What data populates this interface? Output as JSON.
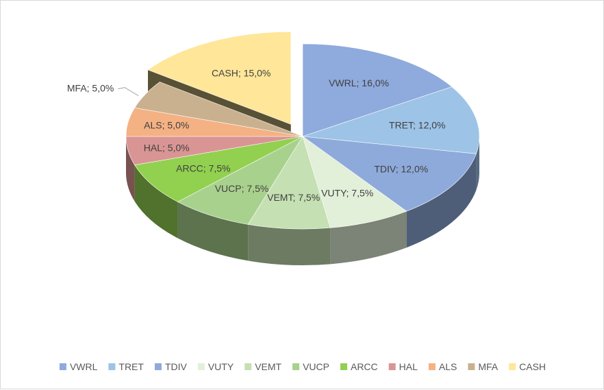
{
  "chart_data": {
    "type": "pie",
    "title": "",
    "legend_position": "bottom",
    "slices": [
      {
        "name": "VWRL",
        "value": 16.0,
        "label": "VWRL; 16,0%",
        "color": "#8faadc",
        "exploded": false
      },
      {
        "name": "TRET",
        "value": 12.0,
        "label": "TRET; 12,0%",
        "color": "#9dc3e6",
        "exploded": false
      },
      {
        "name": "TDIV",
        "value": 12.0,
        "label": "TDIV; 12,0%",
        "color": "#8eaadb",
        "exploded": false
      },
      {
        "name": "VUTY",
        "value": 7.5,
        "label": "VUTY; 7,5%",
        "color": "#e2efd9",
        "exploded": false
      },
      {
        "name": "VEMT",
        "value": 7.5,
        "label": "VEMT; 7,5%",
        "color": "#c5e0b3",
        "exploded": false
      },
      {
        "name": "VUCP",
        "value": 7.5,
        "label": "VUCP; 7,5%",
        "color": "#a9d18e",
        "exploded": false
      },
      {
        "name": "ARCC",
        "value": 7.5,
        "label": "ARCC; 7,5%",
        "color": "#92d050",
        "exploded": false
      },
      {
        "name": "HAL",
        "value": 5.0,
        "label": "HAL; 5,0%",
        "color": "#d99594",
        "exploded": false
      },
      {
        "name": "ALS",
        "value": 5.0,
        "label": "ALS; 5,0%",
        "color": "#f4b183",
        "exploded": false
      },
      {
        "name": "MFA",
        "value": 5.0,
        "label": "MFA; 5,0%",
        "color": "#c9b18f",
        "exploded": false
      },
      {
        "name": "CASH",
        "value": 15.0,
        "label": "CASH; 15,0%",
        "color": "#ffe699",
        "exploded": true
      }
    ]
  }
}
